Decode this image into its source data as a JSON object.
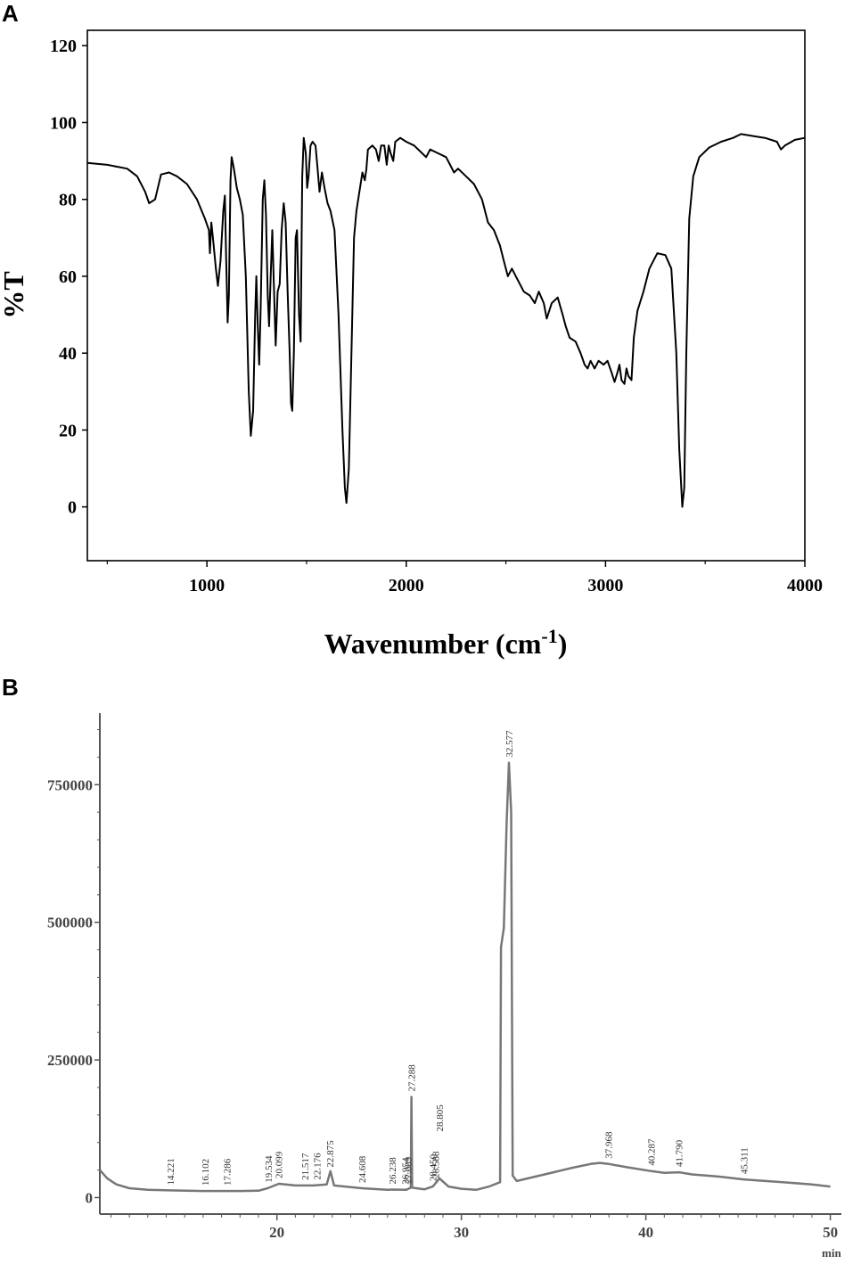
{
  "panels": {
    "a_label": "A",
    "b_label": "B"
  },
  "chart_data": [
    {
      "type": "line",
      "panel": "A",
      "xlabel": "Wavenumber (cm",
      "xlabel_sup": "-1",
      "xlabel_close": ")",
      "ylabel": "%T",
      "xlim": [
        400,
        4000
      ],
      "ylim": [
        -14,
        124
      ],
      "x_ticks": [
        1000,
        2000,
        3000,
        4000
      ],
      "y_ticks": [
        0,
        20,
        40,
        60,
        80,
        100,
        120
      ],
      "grid": false,
      "series": [
        {
          "points": [
            [
              400,
              89.5
            ],
            [
              500,
              89
            ],
            [
              600,
              88
            ],
            [
              650,
              86
            ],
            [
              690,
              82
            ],
            [
              710,
              79
            ],
            [
              740,
              80
            ],
            [
              770,
              86.5
            ],
            [
              810,
              87
            ],
            [
              850,
              86
            ],
            [
              900,
              84
            ],
            [
              950,
              80
            ],
            [
              990,
              75
            ],
            [
              1010,
              72
            ],
            [
              1015,
              66
            ],
            [
              1022,
              74
            ],
            [
              1030,
              70
            ],
            [
              1045,
              62
            ],
            [
              1055,
              57.5
            ],
            [
              1068,
              64
            ],
            [
              1082,
              77
            ],
            [
              1090,
              81
            ],
            [
              1096,
              66
            ],
            [
              1104,
              48
            ],
            [
              1110,
              55
            ],
            [
              1118,
              85
            ],
            [
              1124,
              91
            ],
            [
              1135,
              88
            ],
            [
              1150,
              83
            ],
            [
              1165,
              80
            ],
            [
              1180,
              76
            ],
            [
              1195,
              60
            ],
            [
              1210,
              30
            ],
            [
              1220,
              18.5
            ],
            [
              1232,
              25
            ],
            [
              1242,
              50
            ],
            [
              1248,
              60
            ],
            [
              1255,
              47
            ],
            [
              1262,
              37
            ],
            [
              1270,
              52
            ],
            [
              1280,
              80
            ],
            [
              1288,
              85
            ],
            [
              1296,
              76
            ],
            [
              1305,
              55
            ],
            [
              1312,
              47
            ],
            [
              1320,
              60
            ],
            [
              1328,
              72
            ],
            [
              1335,
              59
            ],
            [
              1345,
              42
            ],
            [
              1355,
              56
            ],
            [
              1365,
              58
            ],
            [
              1375,
              72
            ],
            [
              1385,
              79
            ],
            [
              1395,
              74
            ],
            [
              1405,
              56
            ],
            [
              1415,
              40
            ],
            [
              1422,
              27
            ],
            [
              1428,
              25
            ],
            [
              1436,
              40
            ],
            [
              1445,
              70
            ],
            [
              1452,
              72
            ],
            [
              1462,
              50
            ],
            [
              1470,
              43
            ],
            [
              1478,
              86
            ],
            [
              1486,
              96
            ],
            [
              1496,
              92
            ],
            [
              1503,
              83
            ],
            [
              1510,
              86
            ],
            [
              1520,
              94
            ],
            [
              1530,
              95
            ],
            [
              1545,
              94
            ],
            [
              1555,
              88
            ],
            [
              1565,
              82
            ],
            [
              1577,
              87
            ],
            [
              1590,
              83
            ],
            [
              1605,
              79
            ],
            [
              1620,
              77
            ],
            [
              1640,
              72
            ],
            [
              1660,
              50
            ],
            [
              1680,
              20
            ],
            [
              1692,
              5
            ],
            [
              1700,
              1
            ],
            [
              1712,
              10
            ],
            [
              1725,
              40
            ],
            [
              1738,
              70
            ],
            [
              1750,
              77
            ],
            [
              1768,
              83
            ],
            [
              1780,
              87
            ],
            [
              1792,
              85
            ],
            [
              1800,
              88
            ],
            [
              1808,
              93
            ],
            [
              1830,
              94
            ],
            [
              1848,
              93
            ],
            [
              1862,
              90
            ],
            [
              1874,
              94
            ],
            [
              1890,
              94
            ],
            [
              1902,
              89
            ],
            [
              1912,
              94
            ],
            [
              1922,
              92
            ],
            [
              1935,
              90
            ],
            [
              1945,
              95
            ],
            [
              1970,
              96
            ],
            [
              2000,
              95
            ],
            [
              2040,
              94
            ],
            [
              2080,
              92
            ],
            [
              2100,
              91
            ],
            [
              2120,
              93
            ],
            [
              2160,
              92
            ],
            [
              2200,
              91
            ],
            [
              2220,
              89
            ],
            [
              2240,
              87
            ],
            [
              2260,
              88
            ],
            [
              2300,
              86
            ],
            [
              2340,
              84
            ],
            [
              2380,
              80
            ],
            [
              2410,
              74
            ],
            [
              2440,
              72
            ],
            [
              2470,
              68
            ],
            [
              2490,
              64
            ],
            [
              2510,
              60
            ],
            [
              2530,
              62
            ],
            [
              2560,
              59
            ],
            [
              2590,
              56
            ],
            [
              2620,
              55
            ],
            [
              2645,
              53
            ],
            [
              2665,
              56
            ],
            [
              2690,
              53
            ],
            [
              2705,
              49
            ],
            [
              2730,
              53
            ],
            [
              2760,
              54.5
            ],
            [
              2785,
              50
            ],
            [
              2800,
              47
            ],
            [
              2820,
              44
            ],
            [
              2850,
              43
            ],
            [
              2875,
              40
            ],
            [
              2895,
              37
            ],
            [
              2910,
              36
            ],
            [
              2925,
              38
            ],
            [
              2945,
              36
            ],
            [
              2965,
              38
            ],
            [
              2990,
              37
            ],
            [
              3010,
              38
            ],
            [
              3030,
              35
            ],
            [
              3045,
              32.5
            ],
            [
              3060,
              35
            ],
            [
              3070,
              37
            ],
            [
              3080,
              33
            ],
            [
              3095,
              32
            ],
            [
              3105,
              36
            ],
            [
              3115,
              34
            ],
            [
              3130,
              33
            ],
            [
              3142,
              44
            ],
            [
              3160,
              51
            ],
            [
              3190,
              56
            ],
            [
              3220,
              62
            ],
            [
              3260,
              66
            ],
            [
              3300,
              65.5
            ],
            [
              3330,
              62
            ],
            [
              3355,
              40
            ],
            [
              3370,
              15
            ],
            [
              3385,
              0
            ],
            [
              3395,
              5
            ],
            [
              3405,
              40
            ],
            [
              3420,
              75
            ],
            [
              3440,
              86
            ],
            [
              3470,
              91
            ],
            [
              3520,
              93.5
            ],
            [
              3580,
              95
            ],
            [
              3640,
              96
            ],
            [
              3680,
              97
            ],
            [
              3740,
              96.5
            ],
            [
              3800,
              96
            ],
            [
              3860,
              95
            ],
            [
              3880,
              93
            ],
            [
              3900,
              94
            ],
            [
              3950,
              95.5
            ],
            [
              4000,
              96
            ]
          ]
        }
      ]
    },
    {
      "type": "line",
      "panel": "B",
      "xlabel": "min",
      "ylabel": "",
      "xlim": [
        10.4,
        50.6
      ],
      "ylim": [
        -30000,
        880000
      ],
      "x_ticks": [
        20,
        30,
        40,
        50
      ],
      "y_ticks": [
        0,
        250000,
        500000,
        750000
      ],
      "y_tick_labels": [
        "0",
        "250000",
        "500000",
        "750000"
      ],
      "grid": false,
      "series": [
        {
          "points": [
            [
              10.4,
              50000
            ],
            [
              10.8,
              35000
            ],
            [
              11.3,
              24000
            ],
            [
              12,
              17000
            ],
            [
              13,
              14000
            ],
            [
              14.2,
              13000
            ],
            [
              16,
              12000
            ],
            [
              18,
              12000
            ],
            [
              19,
              12500
            ],
            [
              19.5,
              17000
            ],
            [
              20.1,
              25000
            ],
            [
              21,
              22000
            ],
            [
              22,
              22000
            ],
            [
              22.7,
              24000
            ],
            [
              22.9,
              48000
            ],
            [
              23.1,
              22000
            ],
            [
              24.6,
              17000
            ],
            [
              26,
              14000
            ],
            [
              26.24,
              14500
            ],
            [
              27,
              14000
            ],
            [
              27.26,
              18000
            ],
            [
              27.29,
              183000
            ],
            [
              27.33,
              18000
            ],
            [
              28,
              15000
            ],
            [
              28.45,
              20000
            ],
            [
              28.7,
              30000
            ],
            [
              28.81,
              35000
            ],
            [
              29.3,
              20000
            ],
            [
              30,
              16000
            ],
            [
              30.8,
              14000
            ],
            [
              31.5,
              20000
            ],
            [
              32.1,
              28000
            ],
            [
              32.15,
              455000
            ],
            [
              32.3,
              490000
            ],
            [
              32.45,
              680000
            ],
            [
              32.58,
              790000
            ],
            [
              32.7,
              700000
            ],
            [
              32.78,
              40000
            ],
            [
              33,
              30000
            ],
            [
              34,
              38000
            ],
            [
              35,
              46000
            ],
            [
              36,
              54000
            ],
            [
              37,
              61000
            ],
            [
              37.5,
              63000
            ],
            [
              38,
              61000
            ],
            [
              39,
              55000
            ],
            [
              40.3,
              48000
            ],
            [
              41,
              45000
            ],
            [
              41.8,
              46000
            ],
            [
              42.5,
              42000
            ],
            [
              44,
              38000
            ],
            [
              45.3,
              33000
            ],
            [
              47,
              29000
            ],
            [
              49,
              24000
            ],
            [
              50,
              20000
            ]
          ]
        }
      ],
      "peak_labels": [
        "14.221",
        "16.102",
        "17.286",
        "19.534",
        "20.099",
        "21.517",
        "22.176",
        "22.875",
        "24.608",
        "26.238",
        "26.954",
        "27.089",
        "27.288",
        "28.450",
        "28.588",
        "28.805",
        "32.577",
        "37.968",
        "40.287",
        "41.790",
        "45.311"
      ],
      "peak_label_values": [
        14.221,
        16.102,
        17.286,
        19.534,
        20.099,
        21.517,
        22.176,
        22.875,
        24.608,
        26.238,
        26.954,
        27.089,
        27.288,
        28.45,
        28.588,
        28.805,
        32.577,
        37.968,
        40.287,
        41.79,
        45.311
      ]
    }
  ]
}
